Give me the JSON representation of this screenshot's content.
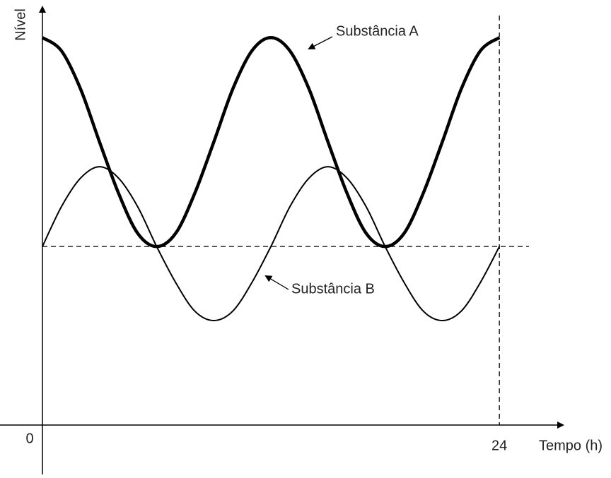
{
  "chart_data": {
    "type": "line",
    "x_label": "Tempo (h)",
    "y_label": "Nível",
    "x": [
      0,
      1,
      2,
      3,
      4,
      5,
      6,
      7,
      8,
      9,
      10,
      11,
      12,
      13,
      14,
      15,
      16,
      17,
      18,
      19,
      20,
      21,
      22,
      23,
      24
    ],
    "series": [
      {
        "name": "Substância A",
        "color": "#000000",
        "width": 4.5,
        "values": [
          20.4,
          19.7,
          17.7,
          14.9,
          12.2,
          10.1,
          9.4,
          10.1,
          12.2,
          14.9,
          17.7,
          19.7,
          20.4,
          19.7,
          17.7,
          14.9,
          12.2,
          10.1,
          9.4,
          10.1,
          12.2,
          14.9,
          17.7,
          19.7,
          20.4
        ]
      },
      {
        "name": "Substância B",
        "color": "#000000",
        "width": 2,
        "values": [
          9.4,
          11.5,
          13.0,
          13.6,
          13.0,
          11.5,
          9.4,
          7.5,
          6.0,
          5.5,
          6.0,
          7.5,
          9.4,
          11.5,
          13.0,
          13.6,
          13.0,
          11.5,
          9.4,
          7.5,
          6.0,
          5.5,
          6.0,
          7.5,
          9.4
        ]
      }
    ],
    "xlim": [
      0,
      27.3
    ],
    "ylim": [
      0,
      22
    ],
    "xticks": [
      0,
      24
    ],
    "hline": 9.4,
    "vline": 24
  }
}
